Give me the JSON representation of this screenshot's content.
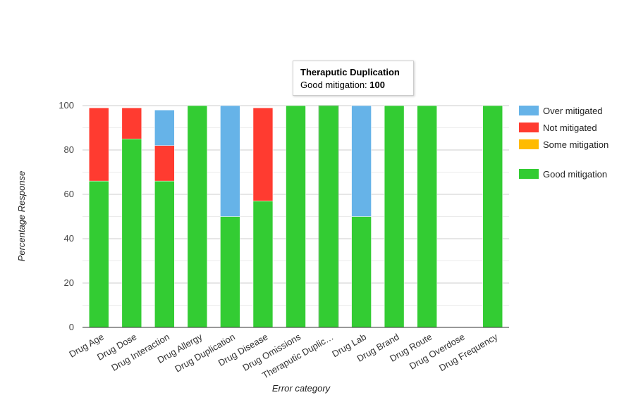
{
  "chart_data": {
    "type": "bar",
    "stacked": true,
    "title": "",
    "xlabel": "Error category",
    "ylabel": "Percentage Response",
    "ylim": [
      0,
      100
    ],
    "yticks": [
      0,
      20,
      40,
      60,
      80,
      100
    ],
    "grid": true,
    "legend_position": "right",
    "categories": [
      "Drug Age",
      "Drug Dose",
      "Drug Interaction",
      "Drug Allergy",
      "Drug Duplication",
      "Drug Disease",
      "Drug Omissions",
      "Theraputic Duplic…",
      "Drug Lab",
      "Drug Brand",
      "Drug Route",
      "Drug Overdose",
      "Drug Frequency"
    ],
    "series": [
      {
        "name": "Good mitigation",
        "color": "#33cc33",
        "values": [
          66,
          85,
          66,
          100,
          50,
          57,
          100,
          100,
          50,
          100,
          100,
          0,
          100
        ]
      },
      {
        "name": "Some mitigation",
        "color": "#ffbb00",
        "values": [
          0,
          0,
          0,
          0,
          0,
          0,
          0,
          0,
          0,
          0,
          0,
          0,
          0
        ]
      },
      {
        "name": "Not mitigated",
        "color": "#ff3b30",
        "values": [
          33,
          14,
          16,
          0,
          0,
          42,
          0,
          0,
          0,
          0,
          0,
          0,
          0
        ]
      },
      {
        "name": "Over mitigated",
        "color": "#66b3e8",
        "values": [
          0,
          0,
          16,
          0,
          50,
          0,
          0,
          0,
          50,
          0,
          0,
          0,
          0
        ]
      }
    ],
    "legend_order": [
      "Over mitigated",
      "Not mitigated",
      "Some mitigation",
      "Good mitigation"
    ],
    "highlighted_category": "Theraputic Duplic…"
  },
  "legend": [
    {
      "label": "Over mitigated",
      "color": "#66b3e8"
    },
    {
      "label": "Not mitigated",
      "color": "#ff3b30"
    },
    {
      "label": "Some mitigation",
      "color": "#ffbb00"
    },
    {
      "label": "Good mitigation",
      "color": "#33cc33"
    }
  ],
  "tooltip": {
    "title": "Theraputic Duplication",
    "series_label": "Good mitigation: ",
    "value": "100"
  }
}
